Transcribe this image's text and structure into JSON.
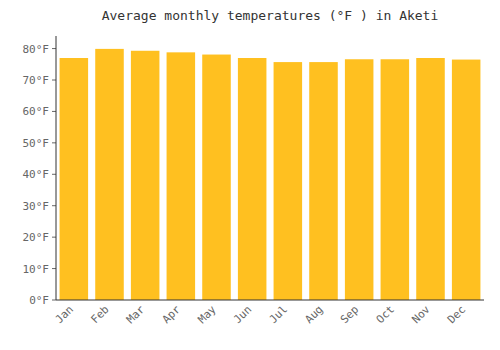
{
  "chart_data": {
    "type": "bar",
    "title": "Average monthly temperatures (°F ) in Aketi",
    "categories": [
      "Jan",
      "Feb",
      "Mar",
      "Apr",
      "May",
      "Jun",
      "Jul",
      "Aug",
      "Sep",
      "Oct",
      "Nov",
      "Dec"
    ],
    "values": [
      77.0,
      79.9,
      79.3,
      78.8,
      78.1,
      77.0,
      75.7,
      75.7,
      76.6,
      76.6,
      77.0,
      76.5
    ],
    "color": "#FFC020",
    "ylim": [
      0,
      84
    ],
    "yticks": [
      {
        "value": 0,
        "label": "0°F"
      },
      {
        "value": 10,
        "label": "10°F"
      },
      {
        "value": 20,
        "label": "20°F"
      },
      {
        "value": 30,
        "label": "30°F"
      },
      {
        "value": 40,
        "label": "40°F"
      },
      {
        "value": 50,
        "label": "50°F"
      },
      {
        "value": 60,
        "label": "60°F"
      },
      {
        "value": 70,
        "label": "70°F"
      },
      {
        "value": 80,
        "label": "80°F"
      }
    ],
    "grid": false
  }
}
